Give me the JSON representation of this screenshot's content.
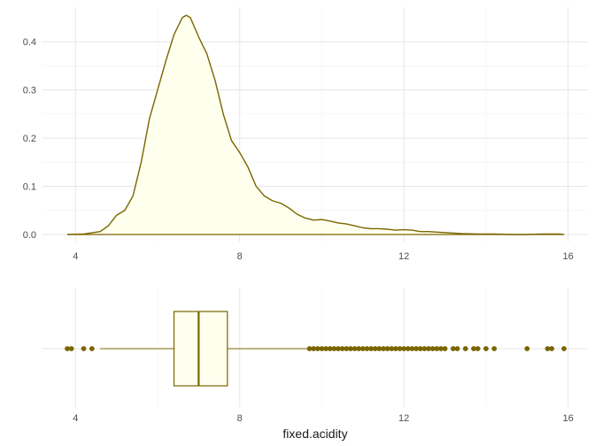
{
  "chart_data": [
    {
      "type": "area",
      "subtype": "density",
      "title": "",
      "xlabel": "",
      "ylabel": "",
      "xlim": [
        3.8,
        15.9
      ],
      "ylim": [
        0,
        0.45
      ],
      "x_ticks": [
        4,
        8,
        12,
        16
      ],
      "y_ticks": [
        0.0,
        0.1,
        0.2,
        0.3,
        0.4
      ],
      "y_tick_labels": [
        "0.0",
        "0.1",
        "0.2",
        "0.3",
        "0.4"
      ],
      "grid": true,
      "x": [
        3.8,
        4.2,
        4.6,
        4.8,
        5.0,
        5.2,
        5.4,
        5.6,
        5.8,
        6.0,
        6.2,
        6.4,
        6.6,
        6.7,
        6.8,
        6.9,
        7.0,
        7.2,
        7.4,
        7.6,
        7.8,
        8.0,
        8.2,
        8.4,
        8.6,
        8.8,
        9.0,
        9.2,
        9.4,
        9.6,
        9.8,
        10.0,
        10.2,
        10.4,
        10.6,
        10.8,
        11.0,
        11.2,
        11.4,
        11.6,
        11.8,
        12.0,
        12.2,
        12.4,
        12.6,
        12.8,
        13.0,
        13.4,
        13.8,
        14.2,
        14.6,
        15.0,
        15.4,
        15.8,
        15.9
      ],
      "y": [
        0.0,
        0.001,
        0.006,
        0.018,
        0.04,
        0.05,
        0.08,
        0.15,
        0.24,
        0.3,
        0.36,
        0.415,
        0.45,
        0.455,
        0.45,
        0.43,
        0.41,
        0.375,
        0.32,
        0.25,
        0.195,
        0.17,
        0.14,
        0.1,
        0.08,
        0.07,
        0.065,
        0.055,
        0.042,
        0.034,
        0.03,
        0.031,
        0.028,
        0.024,
        0.022,
        0.018,
        0.014,
        0.012,
        0.012,
        0.011,
        0.009,
        0.01,
        0.009,
        0.006,
        0.006,
        0.005,
        0.004,
        0.002,
        0.001,
        0.001,
        0.0,
        0.0,
        0.001,
        0.001,
        0.0
      ],
      "colors": {
        "line": "#7a6500",
        "fill": "#ffffee"
      }
    },
    {
      "type": "boxplot",
      "xlabel": "fixed.acidity",
      "xlim": [
        3.8,
        15.9
      ],
      "x_ticks": [
        4,
        8,
        12,
        16
      ],
      "whisker_low": 4.6,
      "q1": 6.4,
      "median": 7.0,
      "q3": 7.7,
      "whisker_high": 9.65,
      "outliers": [
        3.8,
        3.9,
        4.2,
        4.4,
        9.7,
        9.8,
        9.9,
        10.0,
        10.1,
        10.2,
        10.3,
        10.4,
        10.5,
        10.6,
        10.7,
        10.8,
        10.9,
        11.0,
        11.1,
        11.2,
        11.3,
        11.4,
        11.5,
        11.6,
        11.7,
        11.8,
        11.9,
        12.0,
        12.1,
        12.2,
        12.3,
        12.4,
        12.5,
        12.6,
        12.7,
        12.8,
        12.9,
        13.0,
        13.2,
        13.3,
        13.5,
        13.7,
        13.8,
        14.0,
        14.2,
        15.0,
        15.5,
        15.6,
        15.9
      ],
      "colors": {
        "line": "#7a6500",
        "fill": "#ffffee",
        "point": "#7a6500"
      }
    }
  ]
}
